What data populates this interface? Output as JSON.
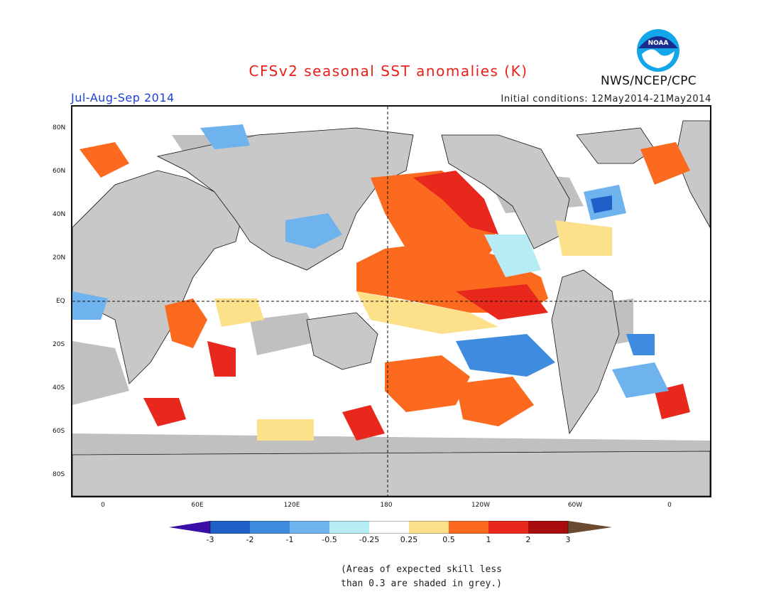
{
  "title": "CFSv2 seasonal SST anomalies (K)",
  "season": "Jul-Aug-Sep 2014",
  "initial_conditions": "Initial conditions: 12May2014-21May2014",
  "agency": "NWS/NCEP/CPC",
  "logo_text": "NOAA",
  "lat_labels": [
    "80N",
    "60N",
    "40N",
    "20N",
    "EQ",
    "20S",
    "40S",
    "60S",
    "80S"
  ],
  "lon_labels": [
    "0",
    "60E",
    "120E",
    "180",
    "120W",
    "60W",
    "0"
  ],
  "colorbar": {
    "ticks": [
      "-3",
      "-2",
      "-1",
      "-0.5",
      "-0.25",
      "0.25",
      "0.5",
      "1",
      "2",
      "3"
    ],
    "colors": [
      "#3a0fa8",
      "#1f5fc8",
      "#3f8be0",
      "#6eb2ee",
      "#b6ecf4",
      "#ffffff",
      "#fde08a",
      "#fb6a1e",
      "#e8281c",
      "#a80c0c",
      "#6b4a32"
    ]
  },
  "note_line1": "(Areas of expected skill less",
  "note_line2": "than 0.3 are shaded in grey.)",
  "colors": {
    "land": "#c8c8c8",
    "grey_mask": "#c0c0c0",
    "title": "#e8201a",
    "season": "#1c3fd8"
  }
}
